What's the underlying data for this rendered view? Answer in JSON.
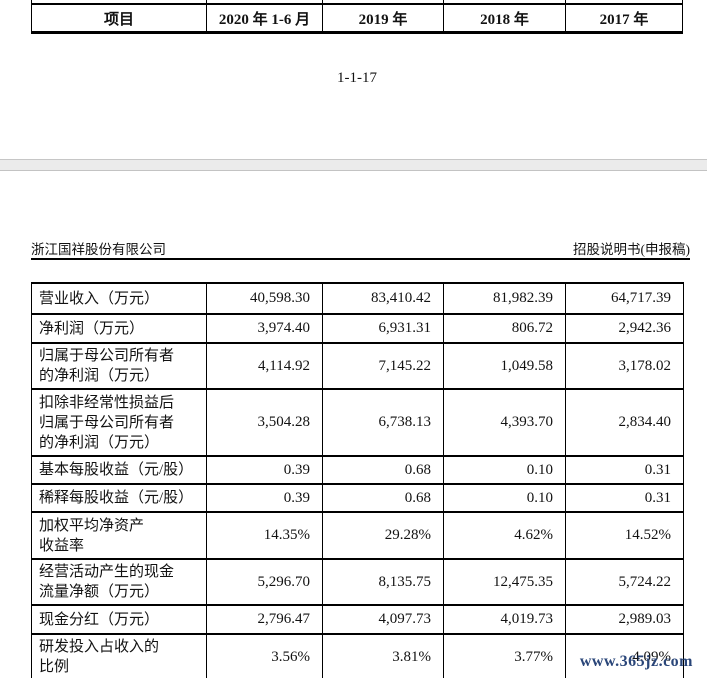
{
  "page": {
    "top_table": {
      "headers": [
        "项目",
        "2020 年 1-6 月",
        "2019 年",
        "2018 年",
        "2017 年"
      ]
    },
    "page_number": "1-1-17",
    "doc_header": {
      "company": "浙江国祥股份有限公司",
      "doc_title": "招股说明书(申报稿)"
    },
    "main_table": {
      "rows": [
        {
          "label": "营业收入（万元）",
          "values": [
            "40,598.30",
            "83,410.42",
            "81,982.39",
            "64,717.39"
          ]
        },
        {
          "label": "净利润（万元）",
          "values": [
            "3,974.40",
            "6,931.31",
            "806.72",
            "2,942.36"
          ]
        },
        {
          "label": "归属于母公司所有者\n的净利润（万元）",
          "values": [
            "4,114.92",
            "7,145.22",
            "1,049.58",
            "3,178.02"
          ]
        },
        {
          "label": "扣除非经常性损益后\n归属于母公司所有者\n的净利润（万元）",
          "values": [
            "3,504.28",
            "6,738.13",
            "4,393.70",
            "2,834.40"
          ]
        },
        {
          "label": "基本每股收益（元/股）",
          "values": [
            "0.39",
            "0.68",
            "0.10",
            "0.31"
          ]
        },
        {
          "label": "稀释每股收益（元/股）",
          "values": [
            "0.39",
            "0.68",
            "0.10",
            "0.31"
          ]
        },
        {
          "label": "加权平均净资产\n收益率",
          "values": [
            "14.35%",
            "29.28%",
            "4.62%",
            "14.52%"
          ]
        },
        {
          "label": "经营活动产生的现金\n流量净额（万元）",
          "values": [
            "5,296.70",
            "8,135.75",
            "12,475.35",
            "5,724.22"
          ]
        },
        {
          "label": "现金分红（万元）",
          "values": [
            "2,796.47",
            "4,097.73",
            "4,019.73",
            "2,989.03"
          ]
        },
        {
          "label": "研发投入占收入的\n比例",
          "values": [
            "3.56%",
            "3.81%",
            "3.77%",
            "4.09%"
          ]
        }
      ]
    },
    "watermark": {
      "text": "www.365jz.com",
      "color": "#2a4679"
    }
  }
}
